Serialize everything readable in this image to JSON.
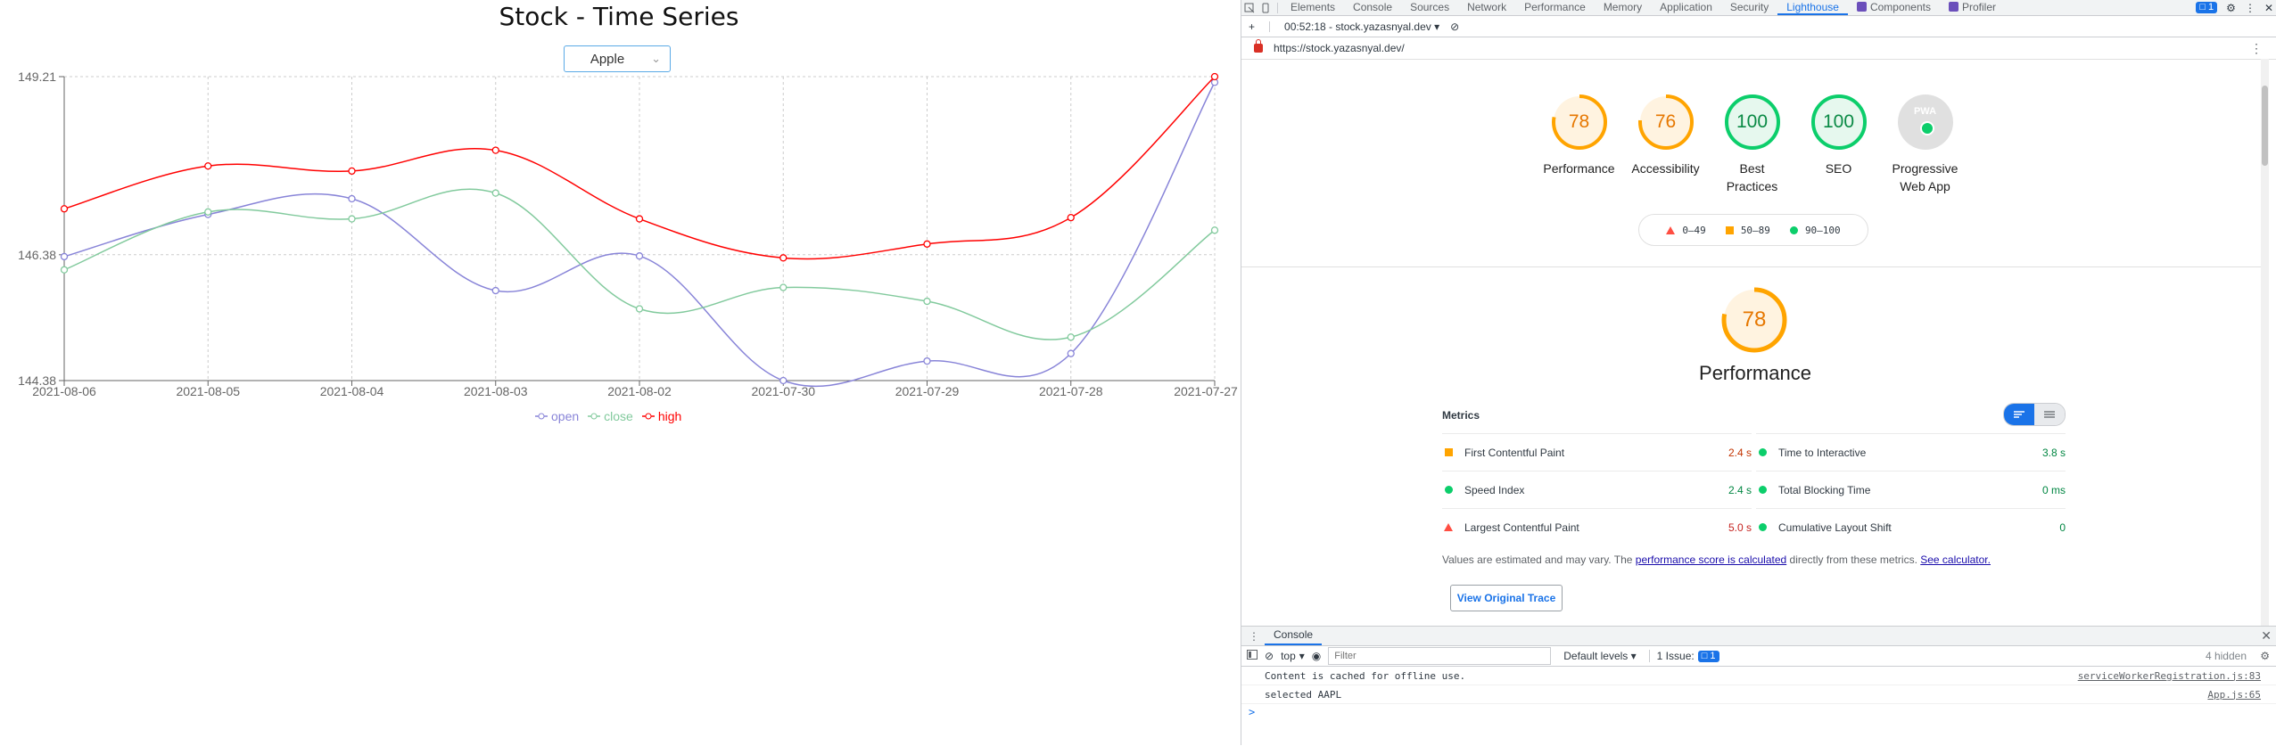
{
  "app": {
    "title": "Stock - Time Series",
    "select_value": "Apple"
  },
  "chart_data": {
    "type": "line",
    "title": "",
    "xlabel": "",
    "ylabel": "",
    "categories": [
      "2021-08-06",
      "2021-08-05",
      "2021-08-04",
      "2021-08-03",
      "2021-08-02",
      "2021-07-30",
      "2021-07-29",
      "2021-07-28",
      "2021-07-27"
    ],
    "y_ticks": [
      "144.38",
      "146.38",
      "149.21"
    ],
    "ylim": [
      144.38,
      149.21
    ],
    "grid": true,
    "legend_position": "bottom",
    "series": [
      {
        "name": "open",
        "color": "#8884d8",
        "values": [
          146.35,
          147.02,
          147.27,
          145.81,
          146.36,
          144.38,
          144.69,
          144.81,
          149.12
        ]
      },
      {
        "name": "close",
        "color": "#82ca9d",
        "values": [
          146.14,
          147.06,
          146.95,
          147.36,
          145.52,
          145.86,
          145.64,
          145.07,
          146.77
        ]
      },
      {
        "name": "high",
        "color": "#ff0000",
        "values": [
          147.11,
          147.79,
          147.71,
          148.04,
          146.95,
          146.33,
          146.55,
          146.97,
          149.21
        ]
      }
    ]
  },
  "devtools": {
    "tabs": [
      "Elements",
      "Console",
      "Sources",
      "Network",
      "Performance",
      "Memory",
      "Application",
      "Security",
      "Lighthouse",
      "Components",
      "Profiler"
    ],
    "active_tab": "Lighthouse",
    "issues_badge": "1",
    "report_selector": "00:52:18 - stock.yazasnyal.dev",
    "url": "https://stock.yazasnyal.dev/",
    "categories": [
      {
        "score": "78",
        "label": "Performance",
        "value": 0.78,
        "color": "#ffa400",
        "bg": "#fff3e0",
        "text": "#e67700"
      },
      {
        "score": "76",
        "label": "Accessibility",
        "value": 0.76,
        "color": "#ffa400",
        "bg": "#fff3e0",
        "text": "#e67700"
      },
      {
        "score": "100",
        "label": "Best\nPractices",
        "value": 1.0,
        "color": "#0cce6b",
        "bg": "#e6f8ee",
        "text": "#0a8a45"
      },
      {
        "score": "100",
        "label": "SEO",
        "value": 1.0,
        "color": "#0cce6b",
        "bg": "#e6f8ee",
        "text": "#0a8a45"
      }
    ],
    "pwa": {
      "badge": "PWA",
      "label": "Progressive\nWeb App"
    },
    "score_legend": [
      "0–49",
      "50–89",
      "90–100"
    ],
    "performance": {
      "score": "78",
      "value": 0.78,
      "title": "Performance"
    },
    "metrics_title": "Metrics",
    "metrics": [
      {
        "label": "First Contentful Paint",
        "value": "2.4 s",
        "status": "average"
      },
      {
        "label": "Time to Interactive",
        "value": "3.8 s",
        "status": "pass"
      },
      {
        "label": "Speed Index",
        "value": "2.4 s",
        "status": "pass"
      },
      {
        "label": "Total Blocking Time",
        "value": "0 ms",
        "status": "pass"
      },
      {
        "label": "Largest Contentful Paint",
        "value": "5.0 s",
        "status": "fail"
      },
      {
        "label": "Cumulative Layout Shift",
        "value": "0",
        "status": "pass"
      }
    ],
    "note_prefix": "Values are estimated and may vary. The ",
    "note_link1": "performance score is calculated",
    "note_middle": " directly from these metrics. ",
    "note_link2": "See calculator.",
    "trace_button": "View Original Trace",
    "drawer_tab": "Console",
    "console": {
      "context": "top",
      "filter_placeholder": "Filter",
      "levels": "Default levels",
      "issues_label": "1 Issue:",
      "issues_count": "1",
      "hidden": "4 hidden",
      "logs": [
        {
          "text": "Content is cached for offline use.",
          "source": "serviceWorkerRegistration.js:83"
        },
        {
          "text": "selected AAPL",
          "source": "App.js:65"
        }
      ],
      "prompt": ">"
    }
  }
}
